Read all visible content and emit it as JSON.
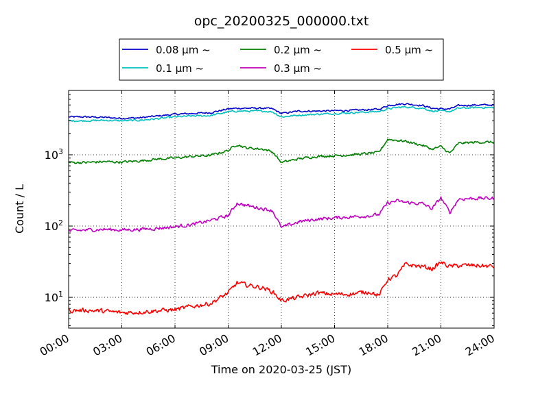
{
  "chart_data": {
    "type": "line",
    "title": "opc_20200325_000000.txt",
    "xlabel": "Time on 2020-03-25 (JST)",
    "ylabel": "Count / L",
    "y_scale": "log",
    "ylim": [
      3.7,
      8000
    ],
    "xlim": [
      "00:00",
      "24:00"
    ],
    "grid": "dotted",
    "legend_position": "top-center",
    "legend_columns": 3,
    "x_ticks": [
      "00:00",
      "03:00",
      "06:00",
      "09:00",
      "12:00",
      "15:00",
      "18:00",
      "21:00",
      "24:00"
    ],
    "y_ticks": [
      {
        "base": "10",
        "exp": "1",
        "value": 10
      },
      {
        "base": "10",
        "exp": "2",
        "value": 100
      },
      {
        "base": "10",
        "exp": "3",
        "value": 1000
      }
    ],
    "x_hours": [
      0,
      1,
      2,
      3,
      4,
      5,
      6,
      7,
      8,
      9,
      9.5,
      10,
      11,
      11.5,
      12,
      13,
      14,
      15,
      16,
      17,
      17.5,
      18,
      18.5,
      19,
      20,
      20.5,
      21,
      21.5,
      22,
      23,
      24
    ],
    "series": [
      {
        "name": "0.08 μm ~",
        "color": "#0000cc",
        "noise": 0.035,
        "values": [
          3400,
          3400,
          3350,
          3250,
          3300,
          3500,
          3700,
          3800,
          3900,
          4400,
          4500,
          4500,
          4500,
          4400,
          3800,
          4100,
          4100,
          4150,
          4200,
          4300,
          4350,
          4900,
          5100,
          5200,
          4900,
          4500,
          4400,
          4400,
          4900,
          5000,
          5000
        ]
      },
      {
        "name": "0.1 μm ~",
        "color": "#00bfbf",
        "noise": 0.035,
        "values": [
          3000,
          3000,
          3050,
          3000,
          3050,
          3200,
          3400,
          3500,
          3550,
          4000,
          4100,
          4100,
          4100,
          4000,
          3400,
          3600,
          3700,
          3800,
          3900,
          4000,
          4050,
          4400,
          4600,
          4700,
          4500,
          4100,
          4100,
          4050,
          4500,
          4600,
          4600
        ]
      },
      {
        "name": "0.2 μm ~",
        "color": "#007f00",
        "noise": 0.05,
        "values": [
          780,
          780,
          800,
          790,
          820,
          870,
          900,
          950,
          980,
          1150,
          1400,
          1250,
          1200,
          1100,
          780,
          880,
          950,
          970,
          1000,
          1050,
          1080,
          1650,
          1600,
          1550,
          1350,
          1200,
          1300,
          1050,
          1450,
          1500,
          1500
        ]
      },
      {
        "name": "0.3 μm ~",
        "color": "#bf00bf",
        "noise": 0.07,
        "values": [
          85,
          88,
          90,
          88,
          90,
          93,
          98,
          105,
          120,
          140,
          210,
          195,
          175,
          165,
          95,
          115,
          125,
          130,
          135,
          140,
          145,
          210,
          225,
          215,
          205,
          175,
          250,
          155,
          240,
          245,
          245
        ]
      },
      {
        "name": "0.5 μm ~",
        "color": "#ff0000",
        "noise": 0.09,
        "values": [
          6.5,
          6.6,
          6.4,
          6.1,
          6.2,
          6.5,
          6.7,
          7.5,
          8.2,
          11.5,
          16,
          15,
          13.5,
          12,
          9,
          10,
          11.5,
          11,
          11.2,
          12,
          10.5,
          18,
          20,
          29,
          27,
          25,
          31,
          27,
          28,
          28,
          27
        ]
      }
    ]
  }
}
